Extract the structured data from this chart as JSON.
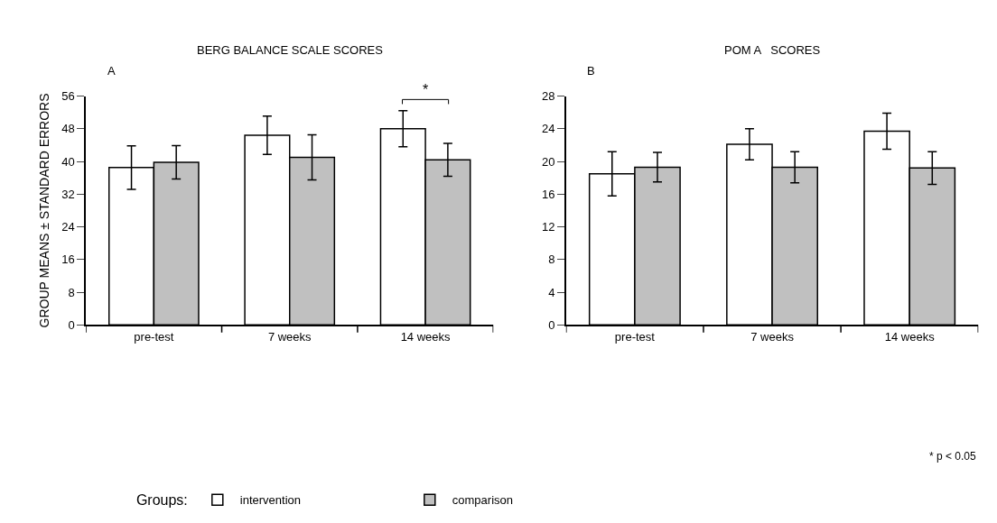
{
  "chart_data": [
    {
      "type": "bar",
      "title": "BERG BALANCE SCALE SCORES",
      "ylabel": "GROUP MEANS ± STANDARD ERRORS",
      "legend_title": "Groups:",
      "legend": "bottom",
      "categories": [
        "pre-test",
        "7 weeks",
        "14 weeks"
      ],
      "series": [
        {
          "name": "intervention",
          "color": "#ffffff",
          "values": [
            38.5,
            46.4,
            48.0
          ],
          "errors": [
            5.3,
            4.7,
            4.4
          ]
        },
        {
          "name": "comparison",
          "color": "#c0c0c0",
          "values": [
            39.8,
            41.0,
            40.4
          ],
          "errors": [
            4.1,
            5.5,
            4.0
          ]
        }
      ],
      "ylim": [
        0,
        56
      ],
      "yticks": [
        0,
        8,
        16,
        24,
        32,
        40,
        48,
        56
      ],
      "annotations": [
        "A",
        "*"
      ]
    },
    {
      "type": "bar",
      "title": "POM A   SCORES",
      "categories": [
        "pre-test",
        "7 weeks",
        "14 weeks"
      ],
      "series": [
        {
          "color": "#ffffff",
          "values": [
            18.5,
            22.1,
            23.7
          ],
          "errors": [
            2.7,
            1.9,
            2.2
          ]
        },
        {
          "color": "#c0c0c0",
          "values": [
            19.3,
            19.3,
            19.2
          ],
          "errors": [
            1.8,
            1.9,
            2.0
          ]
        }
      ],
      "ylim": [
        0,
        28
      ],
      "yticks": [
        0,
        4,
        8,
        12,
        16,
        20,
        24,
        28
      ],
      "annotations": [
        "B",
        "* p < 0.05"
      ]
    }
  ]
}
